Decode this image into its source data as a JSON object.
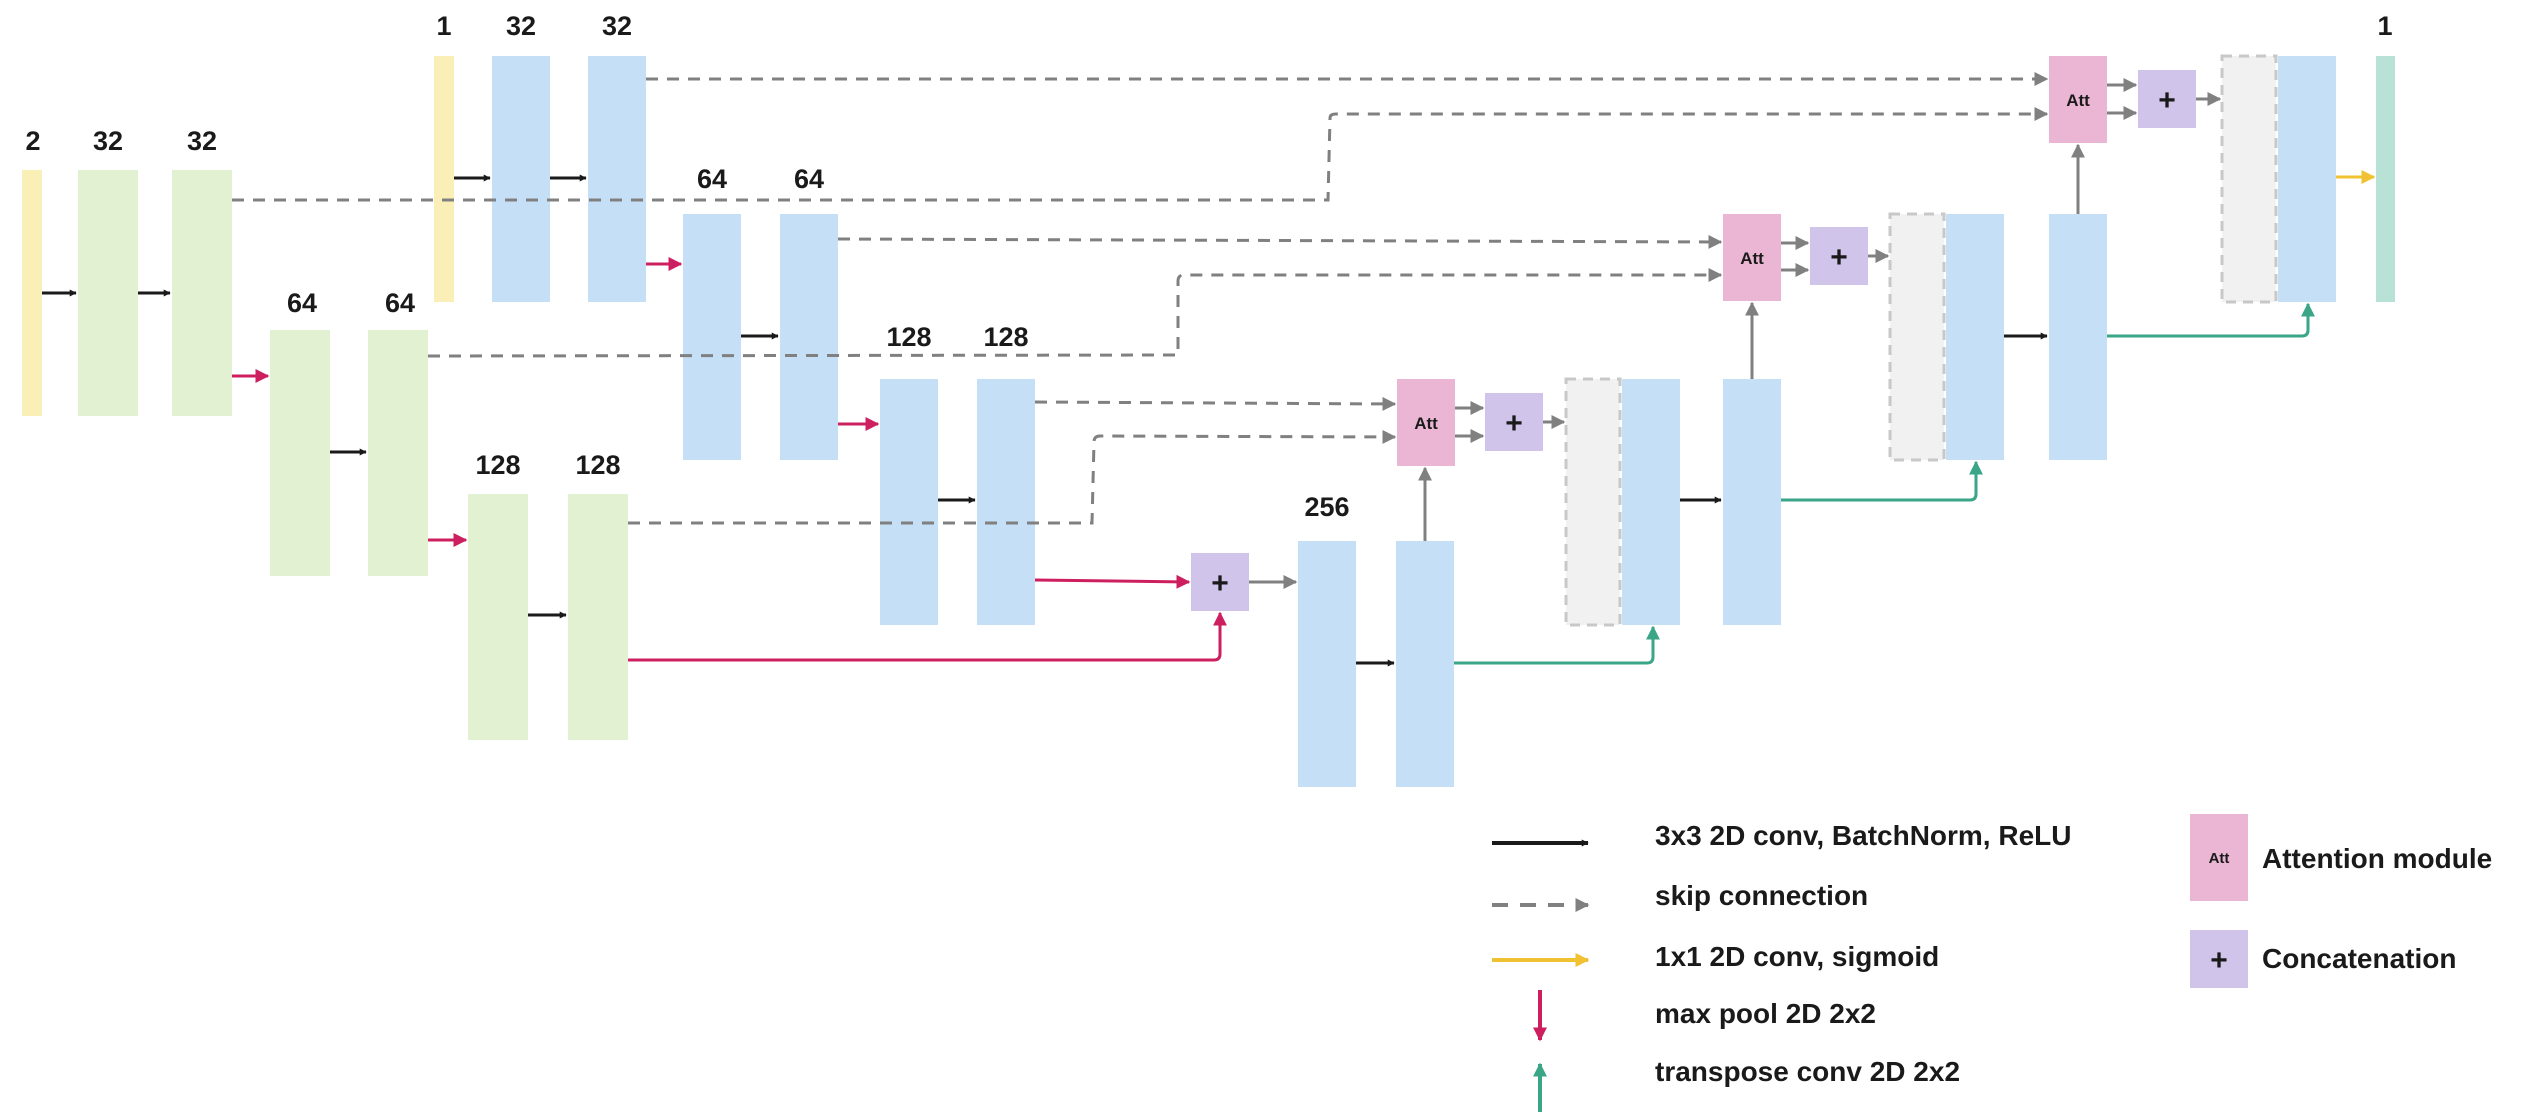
{
  "colors": {
    "input": "#fbefb8",
    "encoder": "#e1f1d2",
    "decoder": "#c5dff6",
    "upsample_placeholder": "#f1f1f1",
    "output": "#b8e2d6",
    "attention": "#eab6d4",
    "concat": "#d1c4ea",
    "conv_arrow": "#1a1a1a",
    "skip_arrow": "#808080",
    "sigmoid_arrow": "#f0c232",
    "maxpool_arrow": "#cd1f5f",
    "transpose_arrow": "#3aa587"
  },
  "channel_labels": {
    "in2": "2",
    "a32": "32",
    "b32": "32",
    "c64": "64",
    "d64": "64",
    "e128": "128",
    "f128": "128",
    "in1": "1",
    "g32": "32",
    "h32": "32",
    "i64": "64",
    "j64": "64",
    "k128": "128",
    "l128": "128",
    "m256": "256",
    "out1": "1"
  },
  "module_labels": {
    "attention": "Att",
    "concat": "+"
  },
  "legend": {
    "conv": "3x3 2D conv, BatchNorm, ReLU",
    "skip": "skip connection",
    "sigmoid": "1x1 2D conv, sigmoid",
    "maxpool": "max pool 2D 2x2",
    "transpose": "transpose conv 2D 2x2",
    "attention": "Attention module",
    "concat": "Concatenation"
  }
}
